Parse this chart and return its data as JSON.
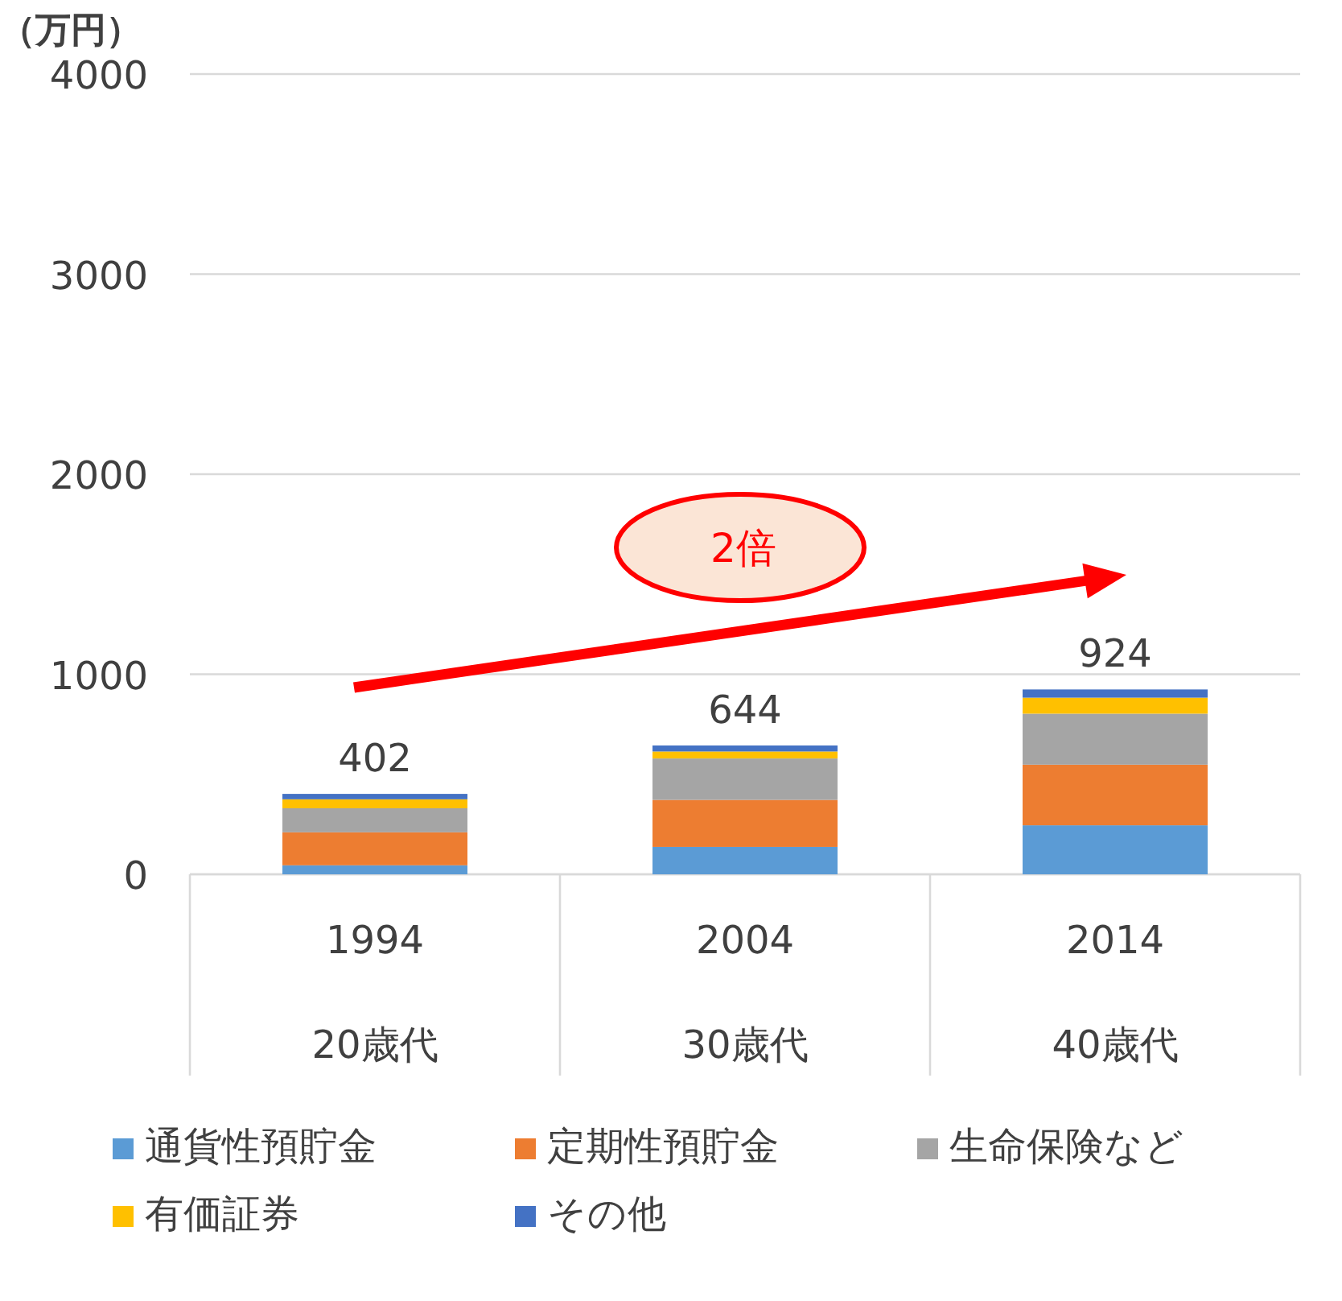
{
  "chart_data": {
    "type": "bar",
    "stacked": true,
    "ylabel": "（万円）",
    "categories": [
      "1994\n20歳代",
      "2004\n30歳代",
      "2014\n40歳代"
    ],
    "series": [
      {
        "name": "通貨性預貯金",
        "color": "#5b9bd5",
        "values": [
          45,
          137,
          245
        ]
      },
      {
        "name": "定期性預貯金",
        "color": "#ed7d31",
        "values": [
          165,
          235,
          303
        ]
      },
      {
        "name": "生命保険など",
        "color": "#a5a5a5",
        "values": [
          120,
          207,
          255
        ]
      },
      {
        "name": "有価証券",
        "color": "#ffc000",
        "values": [
          45,
          35,
          80
        ]
      },
      {
        "name": "その他",
        "color": "#4472c4",
        "values": [
          27,
          30,
          41
        ]
      }
    ],
    "totals": [
      "402",
      "644",
      "924"
    ],
    "ylim": [
      0,
      4000
    ],
    "yticks": [
      0,
      1000,
      2000,
      3000,
      4000
    ],
    "grid": "y",
    "legend": "bottom",
    "annotations": [
      "2倍"
    ]
  }
}
